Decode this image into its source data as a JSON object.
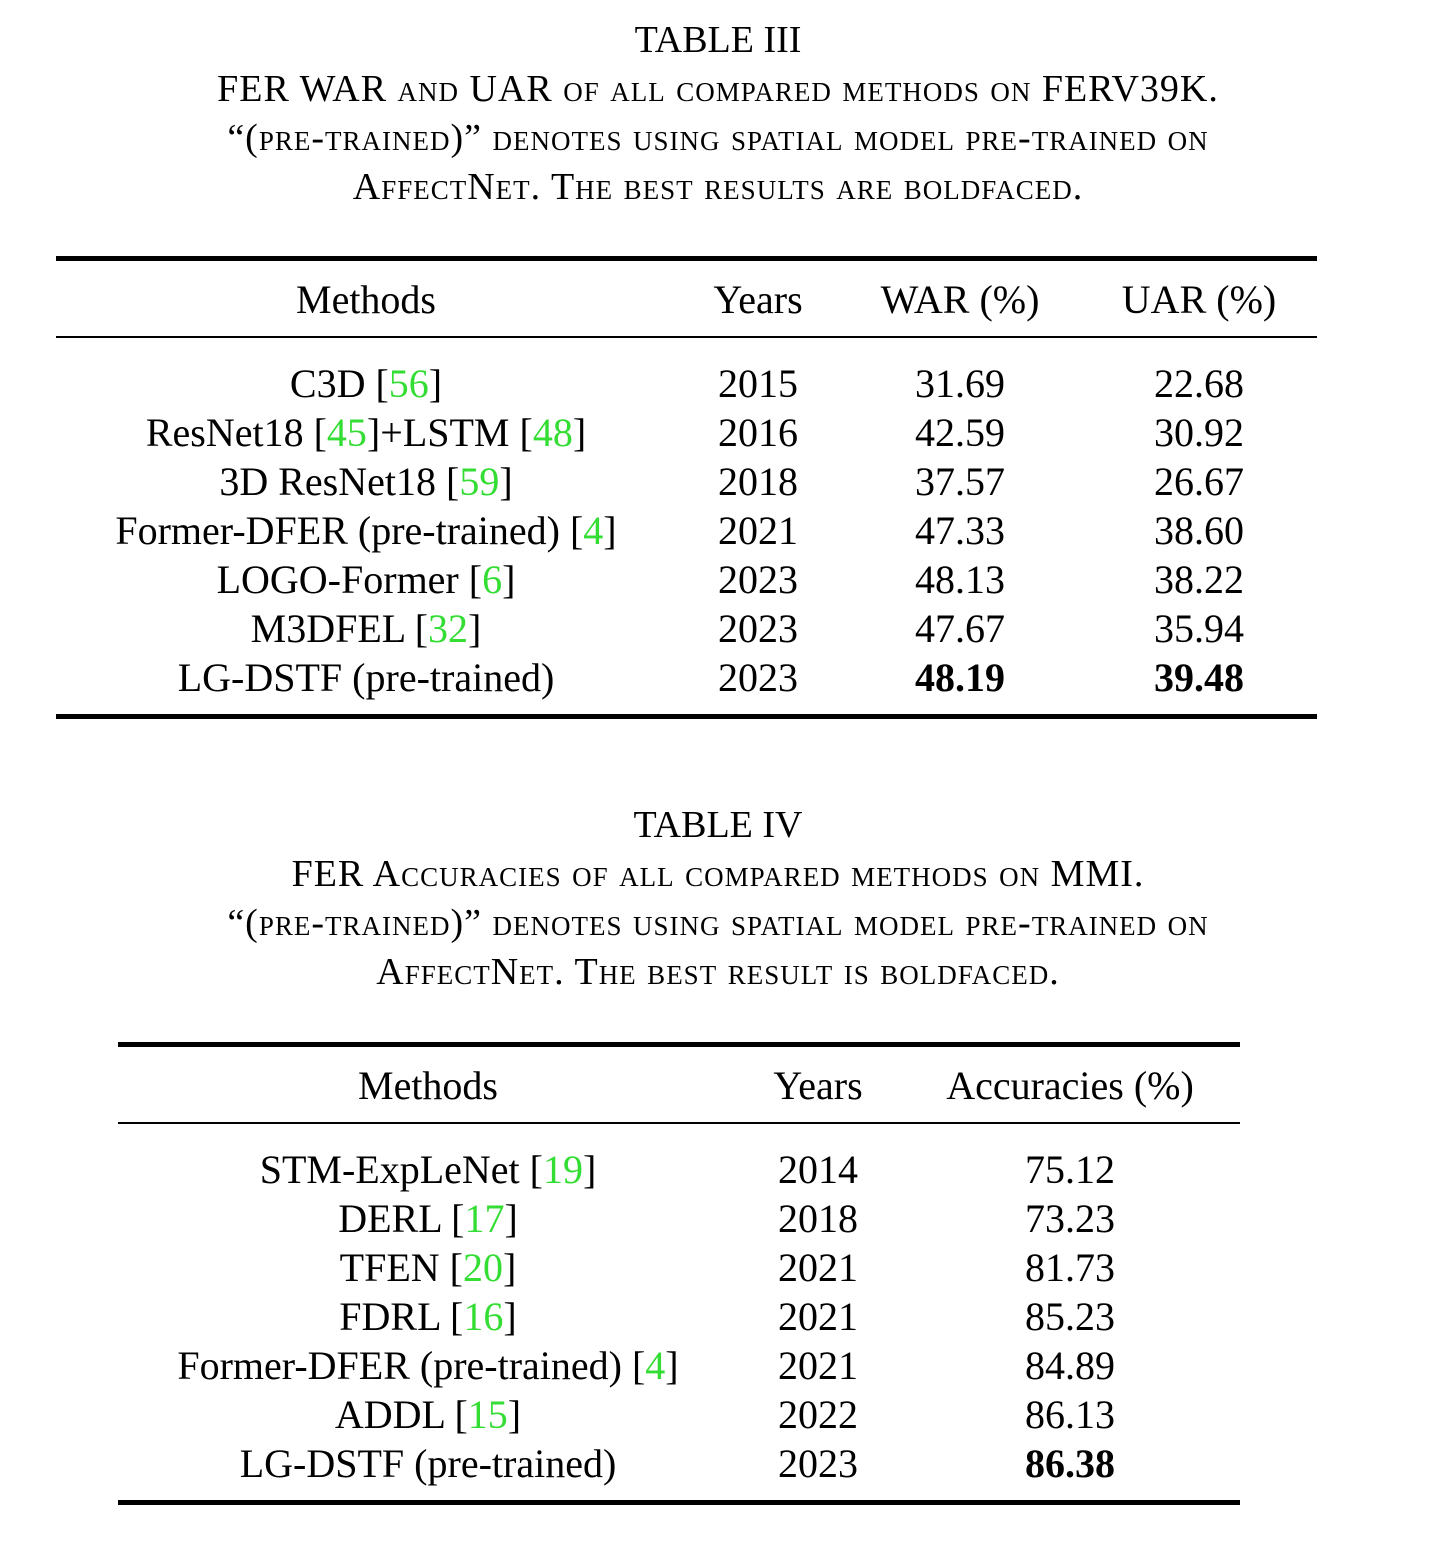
{
  "table3": {
    "label": "TABLE III",
    "caption_lines": [
      "FER WAR and UAR of all compared methods on FERV39K.",
      "“(pre-trained)” denotes using spatial model pre-trained on",
      "AffectNet. The best results are boldfaced."
    ],
    "headers": [
      "Methods",
      "Years",
      "WAR (%)",
      "UAR (%)"
    ],
    "rows": [
      {
        "method": "C3D [56]",
        "year": "2015",
        "war": "31.69",
        "uar": "22.68"
      },
      {
        "method": "ResNet18 [45]+LSTM [48]",
        "year": "2016",
        "war": "42.59",
        "uar": "30.92"
      },
      {
        "method": "3D ResNet18 [59]",
        "year": "2018",
        "war": "37.57",
        "uar": "26.67"
      },
      {
        "method": "Former-DFER (pre-trained) [4]",
        "year": "2021",
        "war": "47.33",
        "uar": "38.60"
      },
      {
        "method": "LOGO-Former [6]",
        "year": "2023",
        "war": "48.13",
        "uar": "38.22"
      },
      {
        "method": "M3DFEL [32]",
        "year": "2023",
        "war": "47.67",
        "uar": "35.94"
      },
      {
        "method": "LG-DSTF (pre-trained)",
        "year": "2023",
        "war": "48.19",
        "uar": "39.48",
        "bold": [
          "war",
          "uar"
        ]
      }
    ]
  },
  "table4": {
    "label": "TABLE IV",
    "caption_lines": [
      "FER Accuracies of all compared methods on MMI.",
      "“(pre-trained)” denotes using spatial model pre-trained on",
      "AffectNet. The best result is boldfaced."
    ],
    "headers": [
      "Methods",
      "Years",
      "Accuracies (%)"
    ],
    "rows": [
      {
        "method": "STM-ExpLeNet [19]",
        "year": "2014",
        "acc": "75.12"
      },
      {
        "method": "DERL [17]",
        "year": "2018",
        "acc": "73.23"
      },
      {
        "method": "TFEN [20]",
        "year": "2021",
        "acc": "81.73"
      },
      {
        "method": "FDRL [16]",
        "year": "2021",
        "acc": "85.23"
      },
      {
        "method": "Former-DFER (pre-trained) [4]",
        "year": "2021",
        "acc": "84.89"
      },
      {
        "method": "ADDL [15]",
        "year": "2022",
        "acc": "86.13"
      },
      {
        "method": "LG-DSTF (pre-trained)",
        "year": "2023",
        "acc": "86.38",
        "bold": [
          "acc"
        ]
      }
    ]
  },
  "colors": {
    "citation": "#33dd33",
    "text": "#000000"
  }
}
